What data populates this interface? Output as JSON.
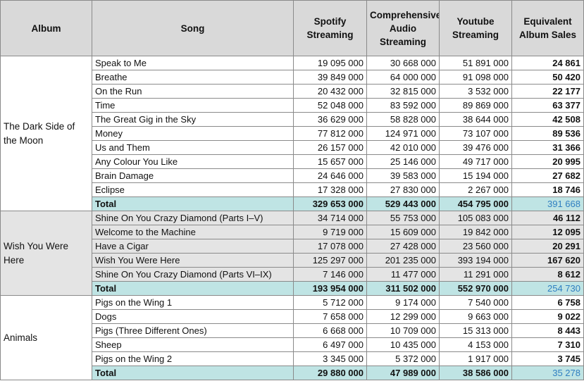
{
  "headers": {
    "album": "Album",
    "song": "Song",
    "spotify": "Spotify Streaming",
    "audio": "Comprehensive Audio Streaming",
    "youtube": "Youtube Streaming",
    "eas": "Equivalent Album Sales"
  },
  "groups": [
    {
      "album": "The Dark Side of the Moon",
      "rows": [
        {
          "song": "Speak to Me",
          "spotify": "19 095 000",
          "audio": "30 668 000",
          "youtube": "51 891 000",
          "eas": "24 861"
        },
        {
          "song": "Breathe",
          "spotify": "39 849 000",
          "audio": "64 000 000",
          "youtube": "91 098 000",
          "eas": "50 420"
        },
        {
          "song": "On the Run",
          "spotify": "20 432 000",
          "audio": "32 815 000",
          "youtube": "3 532 000",
          "eas": "22 177"
        },
        {
          "song": "Time",
          "spotify": "52 048 000",
          "audio": "83 592 000",
          "youtube": "89 869 000",
          "eas": "63 377"
        },
        {
          "song": "The Great Gig in the Sky",
          "spotify": "36 629 000",
          "audio": "58 828 000",
          "youtube": "38 644 000",
          "eas": "42 508"
        },
        {
          "song": "Money",
          "spotify": "77 812 000",
          "audio": "124 971 000",
          "youtube": "73 107 000",
          "eas": "89 536"
        },
        {
          "song": "Us and Them",
          "spotify": "26 157 000",
          "audio": "42 010 000",
          "youtube": "39 476 000",
          "eas": "31 366"
        },
        {
          "song": "Any Colour You Like",
          "spotify": "15 657 000",
          "audio": "25 146 000",
          "youtube": "49 717 000",
          "eas": "20 995"
        },
        {
          "song": "Brain Damage",
          "spotify": "24 646 000",
          "audio": "39 583 000",
          "youtube": "15 194 000",
          "eas": "27 682"
        },
        {
          "song": "Eclipse",
          "spotify": "17 328 000",
          "audio": "27 830 000",
          "youtube": "2 267 000",
          "eas": "18 746"
        }
      ],
      "total": {
        "label": "Total",
        "spotify": "329 653 000",
        "audio": "529 443 000",
        "youtube": "454 795 000",
        "eas": "391 668"
      }
    },
    {
      "album": "Wish You Were Here",
      "rows": [
        {
          "song": "Shine On You Crazy Diamond (Parts I–V)",
          "spotify": "34 714 000",
          "audio": "55 753 000",
          "youtube": "105 083 000",
          "eas": "46 112"
        },
        {
          "song": "Welcome to the Machine",
          "spotify": "9 719 000",
          "audio": "15 609 000",
          "youtube": "19 842 000",
          "eas": "12 095"
        },
        {
          "song": "Have a Cigar",
          "spotify": "17 078 000",
          "audio": "27 428 000",
          "youtube": "23 560 000",
          "eas": "20 291"
        },
        {
          "song": "Wish You Were Here",
          "spotify": "125 297 000",
          "audio": "201 235 000",
          "youtube": "393 194 000",
          "eas": "167 620"
        },
        {
          "song": "Shine On You Crazy Diamond (Parts VI–IX)",
          "spotify": "7 146 000",
          "audio": "11 477 000",
          "youtube": "11 291 000",
          "eas": "8 612"
        }
      ],
      "total": {
        "label": "Total",
        "spotify": "193 954 000",
        "audio": "311 502 000",
        "youtube": "552 970 000",
        "eas": "254 730"
      }
    },
    {
      "album": "Animals",
      "rows": [
        {
          "song": "Pigs on the Wing 1",
          "spotify": "5 712 000",
          "audio": "9 174 000",
          "youtube": "7 540 000",
          "eas": "6 758"
        },
        {
          "song": "Dogs",
          "spotify": "7 658 000",
          "audio": "12 299 000",
          "youtube": "9 663 000",
          "eas": "9 022"
        },
        {
          "song": "Pigs (Three Different Ones)",
          "spotify": "6 668 000",
          "audio": "10 709 000",
          "youtube": "15 313 000",
          "eas": "8 443"
        },
        {
          "song": "Sheep",
          "spotify": "6 497 000",
          "audio": "10 435 000",
          "youtube": "4 153 000",
          "eas": "7 310"
        },
        {
          "song": "Pigs on the Wing 2",
          "spotify": "3 345 000",
          "audio": "5 372 000",
          "youtube": "1 917 000",
          "eas": "3 745"
        }
      ],
      "total": {
        "label": "Total",
        "spotify": "29 880 000",
        "audio": "47 989 000",
        "youtube": "38 586 000",
        "eas": "35 278"
      }
    }
  ]
}
